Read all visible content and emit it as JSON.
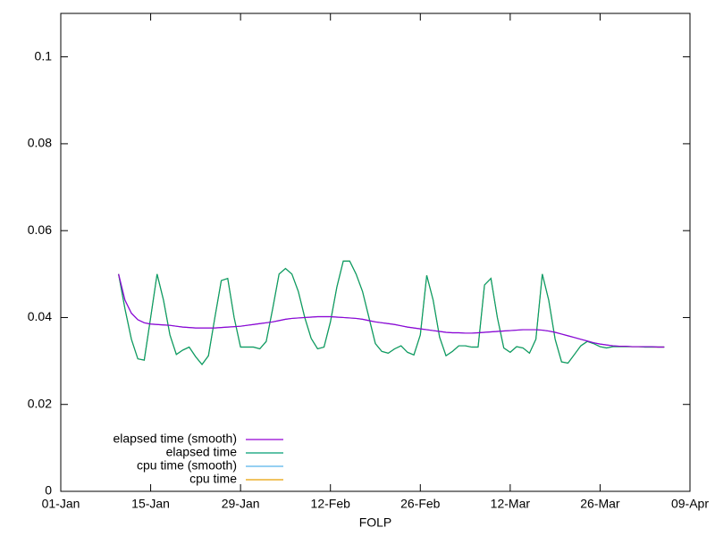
{
  "chart_data": {
    "type": "line",
    "xlabel": "FOLP",
    "xlim": [
      "01-Jan",
      "09-Apr"
    ],
    "xticks": [
      "01-Jan",
      "15-Jan",
      "29-Jan",
      "12-Feb",
      "26-Feb",
      "12-Mar",
      "26-Mar",
      "09-Apr"
    ],
    "ylim": [
      0,
      0.11
    ],
    "yticks": [
      0,
      0.02,
      0.04,
      0.06,
      0.08,
      0.1
    ],
    "legend": "bottom-left",
    "x": [
      "10-Jan",
      "11-Jan",
      "12-Jan",
      "13-Jan",
      "14-Jan",
      "15-Jan",
      "16-Jan",
      "17-Jan",
      "18-Jan",
      "19-Jan",
      "20-Jan",
      "21-Jan",
      "22-Jan",
      "23-Jan",
      "24-Jan",
      "25-Jan",
      "26-Jan",
      "27-Jan",
      "28-Jan",
      "29-Jan",
      "30-Jan",
      "31-Jan",
      "01-Feb",
      "02-Feb",
      "03-Feb",
      "04-Feb",
      "05-Feb",
      "06-Feb",
      "07-Feb",
      "08-Feb",
      "09-Feb",
      "10-Feb",
      "11-Feb",
      "12-Feb",
      "13-Feb",
      "14-Feb",
      "15-Feb",
      "16-Feb",
      "17-Feb",
      "18-Feb",
      "19-Feb",
      "20-Feb",
      "21-Feb",
      "22-Feb",
      "23-Feb",
      "24-Feb",
      "25-Feb",
      "26-Feb",
      "27-Feb",
      "28-Feb",
      "01-Mar",
      "02-Mar",
      "03-Mar",
      "04-Mar",
      "05-Mar",
      "06-Mar",
      "07-Mar",
      "08-Mar",
      "09-Mar",
      "10-Mar",
      "11-Mar",
      "12-Mar",
      "13-Mar",
      "14-Mar",
      "15-Mar",
      "16-Mar",
      "17-Mar",
      "18-Mar",
      "19-Mar",
      "20-Mar",
      "21-Mar",
      "22-Mar",
      "23-Mar",
      "24-Mar",
      "25-Mar",
      "26-Mar",
      "27-Mar",
      "28-Mar",
      "29-Mar",
      "30-Mar",
      "31-Mar",
      "01-Apr",
      "02-Apr",
      "03-Apr",
      "04-Apr",
      "05-Apr"
    ],
    "series": [
      {
        "name": "elapsed time (smooth)",
        "color": "#9400d3",
        "values": [
          0.05,
          0.044,
          0.041,
          0.0395,
          0.0388,
          0.0385,
          0.0384,
          0.0383,
          0.0382,
          0.038,
          0.0378,
          0.0377,
          0.0376,
          0.0376,
          0.0376,
          0.0376,
          0.0377,
          0.0378,
          0.0379,
          0.038,
          0.0382,
          0.0384,
          0.0386,
          0.0388,
          0.039,
          0.0393,
          0.0396,
          0.0398,
          0.0399,
          0.04,
          0.0401,
          0.0402,
          0.0402,
          0.0402,
          0.0401,
          0.04,
          0.0399,
          0.0398,
          0.0396,
          0.0393,
          0.039,
          0.0388,
          0.0386,
          0.0384,
          0.0381,
          0.0378,
          0.0376,
          0.0374,
          0.0372,
          0.037,
          0.0368,
          0.0366,
          0.0365,
          0.0365,
          0.0364,
          0.0364,
          0.0365,
          0.0366,
          0.0367,
          0.0368,
          0.0369,
          0.037,
          0.0371,
          0.0372,
          0.0372,
          0.0372,
          0.0371,
          0.0369,
          0.0366,
          0.0362,
          0.0358,
          0.0354,
          0.035,
          0.0346,
          0.0342,
          0.0339,
          0.0337,
          0.0335,
          0.0334,
          0.0334,
          0.0333,
          0.0333,
          0.0333,
          0.0333,
          0.0332,
          0.0332
        ]
      },
      {
        "name": "elapsed time",
        "color": "#009e73",
        "values": [
          0.05,
          0.042,
          0.035,
          0.0305,
          0.0302,
          0.04,
          0.05,
          0.044,
          0.036,
          0.0315,
          0.0325,
          0.0332,
          0.031,
          0.0292,
          0.0312,
          0.04,
          0.0485,
          0.049,
          0.04,
          0.0332,
          0.0332,
          0.0332,
          0.0328,
          0.0345,
          0.042,
          0.05,
          0.0513,
          0.05,
          0.046,
          0.04,
          0.0352,
          0.0328,
          0.0332,
          0.039,
          0.047,
          0.053,
          0.053,
          0.05,
          0.046,
          0.04,
          0.034,
          0.0322,
          0.0318,
          0.0328,
          0.0335,
          0.032,
          0.0314,
          0.036,
          0.0497,
          0.044,
          0.0355,
          0.0312,
          0.0322,
          0.0335,
          0.0335,
          0.0332,
          0.0332,
          0.0475,
          0.049,
          0.04,
          0.033,
          0.032,
          0.0333,
          0.033,
          0.0318,
          0.035,
          0.05,
          0.044,
          0.035,
          0.0298,
          0.0295,
          0.0315,
          0.0335,
          0.0345,
          0.034,
          0.0333,
          0.033,
          0.0333,
          0.0333,
          0.0333,
          0.0333,
          0.0333,
          0.0332,
          0.0332,
          0.0332,
          0.0332
        ]
      },
      {
        "name": "cpu time (smooth)",
        "color": "#56b4e9",
        "values": [
          0.05,
          0.044,
          0.041,
          0.0395,
          0.0388,
          0.0385,
          0.0384,
          0.0383,
          0.0382,
          0.038,
          0.0378,
          0.0377,
          0.0376,
          0.0376,
          0.0376,
          0.0376,
          0.0377,
          0.0378,
          0.0379,
          0.038,
          0.0382,
          0.0384,
          0.0386,
          0.0388,
          0.039,
          0.0393,
          0.0396,
          0.0398,
          0.0399,
          0.04,
          0.0401,
          0.0402,
          0.0402,
          0.0402,
          0.0401,
          0.04,
          0.0399,
          0.0398,
          0.0396,
          0.0393,
          0.039,
          0.0388,
          0.0386,
          0.0384,
          0.0381,
          0.0378,
          0.0376,
          0.0374,
          0.0372,
          0.037,
          0.0368,
          0.0366,
          0.0365,
          0.0365,
          0.0364,
          0.0364,
          0.0365,
          0.0366,
          0.0367,
          0.0368,
          0.0369,
          0.037,
          0.0371,
          0.0372,
          0.0372,
          0.0372,
          0.0371,
          0.0369,
          0.0366,
          0.0362,
          0.0358,
          0.0354,
          0.035,
          0.0346,
          0.0342,
          0.0339,
          0.0337,
          0.0335,
          0.0334,
          0.0334,
          0.0333,
          0.0333,
          0.0333,
          0.0333,
          0.0332,
          0.0332
        ]
      },
      {
        "name": "cpu time",
        "color": "#e69f00",
        "values": [
          0.05,
          0.042,
          0.035,
          0.0305,
          0.0302,
          0.04,
          0.05,
          0.044,
          0.036,
          0.0315,
          0.0325,
          0.0332,
          0.031,
          0.0292,
          0.0312,
          0.04,
          0.0485,
          0.049,
          0.04,
          0.0332,
          0.0332,
          0.0332,
          0.0328,
          0.0345,
          0.042,
          0.05,
          0.0513,
          0.05,
          0.046,
          0.04,
          0.0352,
          0.0328,
          0.0332,
          0.039,
          0.047,
          0.053,
          0.053,
          0.05,
          0.046,
          0.04,
          0.034,
          0.0322,
          0.0318,
          0.0328,
          0.0335,
          0.032,
          0.0314,
          0.036,
          0.0497,
          0.044,
          0.0355,
          0.0312,
          0.0322,
          0.0335,
          0.0335,
          0.0332,
          0.0332,
          0.0475,
          0.049,
          0.04,
          0.033,
          0.032,
          0.0333,
          0.033,
          0.0318,
          0.035,
          0.05,
          0.044,
          0.035,
          0.0298,
          0.0295,
          0.0315,
          0.0335,
          0.0345,
          0.034,
          0.0333,
          0.033,
          0.0333,
          0.0333,
          0.0333,
          0.0333,
          0.0333,
          0.0332,
          0.0332,
          0.0332,
          0.0332
        ]
      }
    ]
  }
}
